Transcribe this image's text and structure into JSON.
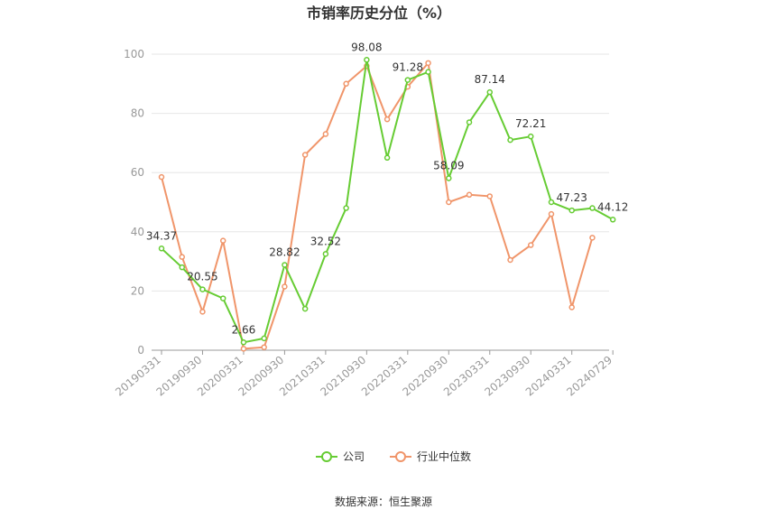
{
  "chart_data": {
    "type": "line",
    "title": "市销率历史分位（%）",
    "source": "数据来源：恒生聚源",
    "ylim": [
      0,
      100
    ],
    "yticks": [
      0,
      20,
      40,
      60,
      80,
      100
    ],
    "x": [
      "20190331",
      "20190630",
      "20190930",
      "20191231",
      "20200331",
      "20200630",
      "20200930",
      "20201231",
      "20210331",
      "20210630",
      "20210930",
      "20211231",
      "20220331",
      "20220630",
      "20220930",
      "20221231",
      "20230331",
      "20230630",
      "20230930",
      "20231231",
      "20240331",
      "20240630",
      "20240729"
    ],
    "xtick_labels": [
      "20190331",
      "20190930",
      "20200331",
      "20200930",
      "20210331",
      "20210930",
      "20220331",
      "20220930",
      "20230331",
      "20230930",
      "20240331",
      "20240729"
    ],
    "grid": true,
    "legend_position": "bottom",
    "series": [
      {
        "name": "公司",
        "color": "#66cc33",
        "values": [
          34.37,
          28.0,
          20.55,
          17.5,
          2.66,
          4.0,
          28.82,
          14.0,
          32.52,
          48.0,
          98.08,
          65.0,
          91.28,
          94.0,
          58.09,
          77.0,
          87.14,
          71.0,
          72.21,
          50.0,
          47.23,
          48.0,
          44.12
        ],
        "labels": {
          "0": "34.37",
          "2": "20.55",
          "4": "2.66",
          "6": "28.82",
          "8": "32.52",
          "10": "98.08",
          "12": "91.28",
          "14": "58.09",
          "16": "87.14",
          "18": "72.21",
          "20": "47.23",
          "22": "44.12"
        }
      },
      {
        "name": "行业中位数",
        "color": "#f0956a",
        "values": [
          58.5,
          31.5,
          13.0,
          37.0,
          0.5,
          1.0,
          21.5,
          66.0,
          73.0,
          90.0,
          96.0,
          78.0,
          89.0,
          97.0,
          50.0,
          52.5,
          52.0,
          30.5,
          35.5,
          46.0,
          14.5,
          38.0,
          null
        ]
      }
    ]
  }
}
